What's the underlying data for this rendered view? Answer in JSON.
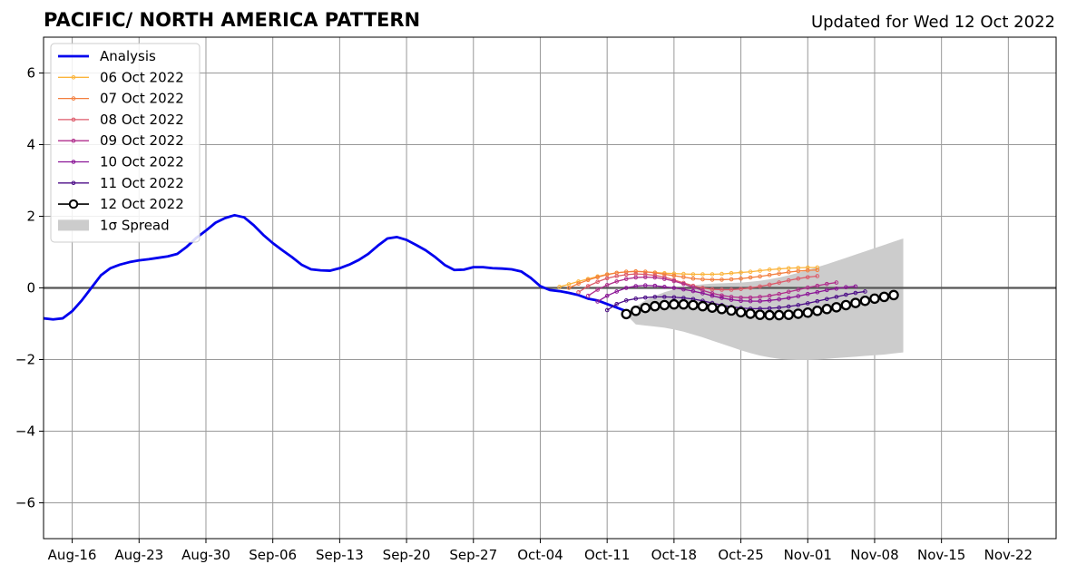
{
  "chart_data": {
    "type": "line",
    "title": "PACIFIC/ NORTH AMERICA PATTERN",
    "subtitle": "Updated for Wed 12 Oct 2022",
    "xlabel": "",
    "ylabel": "",
    "x_range": [
      "2022-08-13",
      "2022-11-27"
    ],
    "ylim": [
      -7,
      7
    ],
    "grid": true,
    "legend_position": "top-left",
    "x_ticks": [
      {
        "date": "2022-08-16",
        "label": "Aug-16"
      },
      {
        "date": "2022-08-23",
        "label": "Aug-23"
      },
      {
        "date": "2022-08-30",
        "label": "Aug-30"
      },
      {
        "date": "2022-09-06",
        "label": "Sep-06"
      },
      {
        "date": "2022-09-13",
        "label": "Sep-13"
      },
      {
        "date": "2022-09-20",
        "label": "Sep-20"
      },
      {
        "date": "2022-09-27",
        "label": "Sep-27"
      },
      {
        "date": "2022-10-04",
        "label": "Oct-04"
      },
      {
        "date": "2022-10-11",
        "label": "Oct-11"
      },
      {
        "date": "2022-10-18",
        "label": "Oct-18"
      },
      {
        "date": "2022-10-25",
        "label": "Oct-25"
      },
      {
        "date": "2022-11-01",
        "label": "Nov-01"
      },
      {
        "date": "2022-11-08",
        "label": "Nov-08"
      },
      {
        "date": "2022-11-15",
        "label": "Nov-15"
      },
      {
        "date": "2022-11-22",
        "label": "Nov-22"
      }
    ],
    "y_ticks": [
      {
        "value": -6,
        "label": "−6"
      },
      {
        "value": -4,
        "label": "−4"
      },
      {
        "value": -2,
        "label": "−2"
      },
      {
        "value": 0,
        "label": "0"
      },
      {
        "value": 2,
        "label": "2"
      },
      {
        "value": 4,
        "label": "4"
      },
      {
        "value": 6,
        "label": "6"
      }
    ],
    "analysis": {
      "name": "Analysis",
      "color": "#0000ee",
      "start_date": "2022-08-13",
      "values": [
        -0.85,
        -0.88,
        -0.85,
        -0.65,
        -0.35,
        0.0,
        0.35,
        0.55,
        0.65,
        0.72,
        0.77,
        0.8,
        0.84,
        0.88,
        0.95,
        1.15,
        1.4,
        1.6,
        1.82,
        1.95,
        2.03,
        1.97,
        1.75,
        1.48,
        1.25,
        1.05,
        0.86,
        0.65,
        0.52,
        0.49,
        0.48,
        0.55,
        0.65,
        0.78,
        0.95,
        1.18,
        1.38,
        1.42,
        1.34,
        1.2,
        1.05,
        0.86,
        0.64,
        0.5,
        0.51,
        0.58,
        0.58,
        0.55,
        0.54,
        0.52,
        0.46,
        0.28,
        0.05,
        -0.06,
        -0.09,
        -0.14,
        -0.2,
        -0.3,
        -0.35,
        -0.45,
        -0.55,
        -0.65
      ]
    },
    "forecasts": [
      {
        "name": "06 Oct 2022",
        "color": "#fbb43b",
        "start_date": "2022-10-06",
        "values": [
          0.03,
          0.1,
          0.18,
          0.25,
          0.32,
          0.38,
          0.42,
          0.45,
          0.46,
          0.45,
          0.43,
          0.41,
          0.4,
          0.39,
          0.38,
          0.38,
          0.38,
          0.39,
          0.41,
          0.43,
          0.45,
          0.48,
          0.51,
          0.53,
          0.55,
          0.56,
          0.57,
          0.57
        ]
      },
      {
        "name": "07 Oct 2022",
        "color": "#f37f3f",
        "start_date": "2022-10-07",
        "values": [
          0.0,
          0.12,
          0.22,
          0.3,
          0.37,
          0.42,
          0.45,
          0.46,
          0.45,
          0.42,
          0.38,
          0.34,
          0.3,
          0.26,
          0.24,
          0.23,
          0.23,
          0.24,
          0.26,
          0.29,
          0.32,
          0.36,
          0.4,
          0.44,
          0.47,
          0.49,
          0.5
        ]
      },
      {
        "name": "08 Oct 2022",
        "color": "#dd5a6a",
        "start_date": "2022-10-08",
        "values": [
          -0.12,
          0.05,
          0.17,
          0.27,
          0.33,
          0.37,
          0.39,
          0.38,
          0.35,
          0.3,
          0.22,
          0.14,
          0.06,
          0.0,
          -0.04,
          -0.05,
          -0.05,
          -0.03,
          0.0,
          0.04,
          0.09,
          0.15,
          0.21,
          0.26,
          0.3,
          0.33
        ]
      },
      {
        "name": "09 Oct 2022",
        "color": "#b02e8c",
        "start_date": "2022-10-09",
        "values": [
          -0.22,
          -0.05,
          0.08,
          0.18,
          0.25,
          0.29,
          0.3,
          0.29,
          0.25,
          0.19,
          0.11,
          0.02,
          -0.07,
          -0.15,
          -0.21,
          -0.25,
          -0.27,
          -0.27,
          -0.25,
          -0.22,
          -0.17,
          -0.11,
          -0.05,
          0.01,
          0.06,
          0.11,
          0.15
        ]
      },
      {
        "name": "10 Oct 2022",
        "color": "#8a1496",
        "start_date": "2022-10-10",
        "values": [
          -0.38,
          -0.22,
          -0.1,
          0.0,
          0.05,
          0.07,
          0.06,
          0.03,
          0.0,
          -0.04,
          -0.09,
          -0.15,
          -0.22,
          -0.28,
          -0.33,
          -0.36,
          -0.37,
          -0.37,
          -0.35,
          -0.32,
          -0.28,
          -0.23,
          -0.17,
          -0.12,
          -0.06,
          -0.02,
          0.02,
          0.04
        ]
      },
      {
        "name": "11 Oct 2022",
        "color": "#4b0c87",
        "start_date": "2022-10-11",
        "values": [
          -0.62,
          -0.45,
          -0.35,
          -0.3,
          -0.27,
          -0.25,
          -0.25,
          -0.26,
          -0.28,
          -0.31,
          -0.36,
          -0.42,
          -0.48,
          -0.53,
          -0.56,
          -0.58,
          -0.58,
          -0.57,
          -0.55,
          -0.52,
          -0.48,
          -0.43,
          -0.37,
          -0.31,
          -0.25,
          -0.19,
          -0.14,
          -0.1
        ]
      },
      {
        "name": "12 Oct 2022",
        "color": "#000000",
        "start_date": "2022-10-13",
        "values": [
          -0.73,
          -0.64,
          -0.56,
          -0.51,
          -0.48,
          -0.46,
          -0.46,
          -0.48,
          -0.51,
          -0.55,
          -0.59,
          -0.63,
          -0.68,
          -0.72,
          -0.75,
          -0.76,
          -0.76,
          -0.75,
          -0.72,
          -0.69,
          -0.64,
          -0.59,
          -0.54,
          -0.48,
          -0.42,
          -0.36,
          -0.3,
          -0.25,
          -0.2
        ]
      }
    ],
    "spread": {
      "name": "1σ Spread",
      "color": "#cccccc",
      "start_date": "2022-10-13",
      "upper": [
        -0.72,
        -0.52,
        -0.35,
        -0.22,
        -0.12,
        -0.04,
        0.02,
        0.07,
        0.1,
        0.12,
        0.13,
        0.14,
        0.15,
        0.17,
        0.2,
        0.24,
        0.29,
        0.35,
        0.42,
        0.5,
        0.58,
        0.66,
        0.75,
        0.84,
        0.93,
        1.02,
        1.11,
        1.2,
        1.29,
        1.38
      ],
      "lower": [
        -0.75,
        -1.02,
        -1.05,
        -1.08,
        -1.11,
        -1.16,
        -1.22,
        -1.3,
        -1.38,
        -1.47,
        -1.56,
        -1.65,
        -1.74,
        -1.82,
        -1.89,
        -1.94,
        -1.98,
        -2.0,
        -2.01,
        -2.01,
        -2.0,
        -1.98,
        -1.96,
        -1.94,
        -1.92,
        -1.9,
        -1.88,
        -1.86,
        -1.83,
        -1.8
      ]
    }
  }
}
